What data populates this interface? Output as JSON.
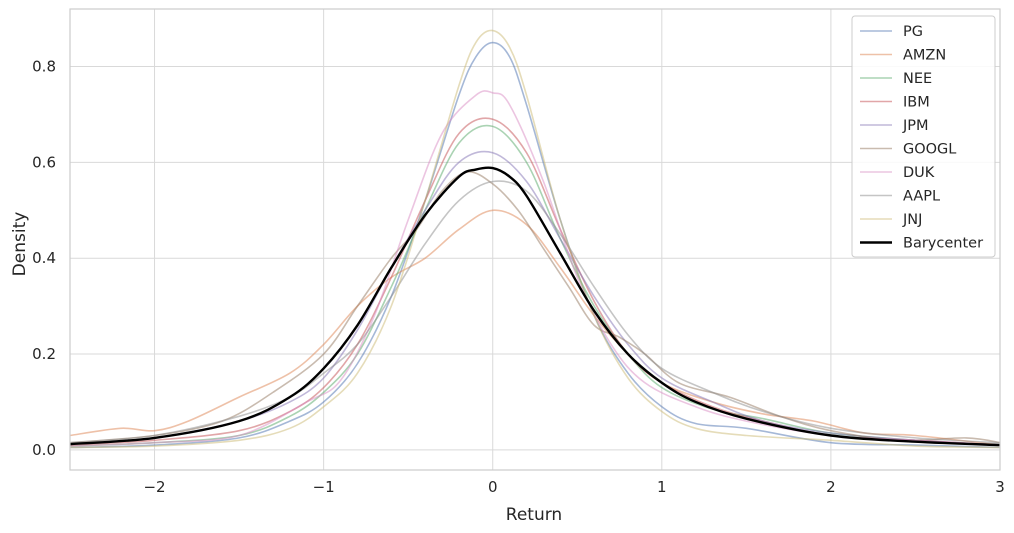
{
  "chart_data": {
    "type": "line",
    "title": "",
    "xlabel": "Return",
    "ylabel": "Density",
    "xlim": [
      -2.5,
      3.0
    ],
    "ylim": [
      -0.042,
      0.92
    ],
    "xticks": [
      -2,
      -1,
      0,
      1,
      2,
      3
    ],
    "xtick_labels": [
      "−2",
      "−1",
      "0",
      "1",
      "2",
      "3"
    ],
    "yticks": [
      0.0,
      0.2,
      0.4,
      0.6,
      0.8
    ],
    "ytick_labels": [
      "0.0",
      "0.2",
      "0.4",
      "0.6",
      "0.8"
    ],
    "grid": true,
    "legend_position": "top-right",
    "series": [
      {
        "name": "PG",
        "color": "#4c72b0",
        "x": [
          -2.5,
          -2.0,
          -1.5,
          -1.2,
          -1.0,
          -0.8,
          -0.6,
          -0.4,
          -0.2,
          -0.1,
          0.0,
          0.1,
          0.2,
          0.4,
          0.6,
          0.8,
          1.0,
          1.2,
          1.5,
          2.0,
          2.5,
          3.0
        ],
        "y": [
          0.005,
          0.01,
          0.025,
          0.06,
          0.1,
          0.18,
          0.32,
          0.52,
          0.74,
          0.82,
          0.85,
          0.82,
          0.72,
          0.48,
          0.28,
          0.16,
          0.09,
          0.055,
          0.045,
          0.015,
          0.01,
          0.005
        ]
      },
      {
        "name": "AMZN",
        "color": "#dd8452",
        "x": [
          -2.5,
          -2.2,
          -2.0,
          -1.8,
          -1.5,
          -1.2,
          -1.0,
          -0.8,
          -0.6,
          -0.4,
          -0.2,
          0.0,
          0.2,
          0.4,
          0.6,
          0.8,
          1.0,
          1.3,
          1.6,
          1.9,
          2.2,
          2.5,
          3.0
        ],
        "y": [
          0.03,
          0.045,
          0.04,
          0.06,
          0.11,
          0.16,
          0.22,
          0.3,
          0.36,
          0.4,
          0.46,
          0.5,
          0.47,
          0.38,
          0.28,
          0.2,
          0.14,
          0.1,
          0.075,
          0.06,
          0.035,
          0.03,
          0.01
        ]
      },
      {
        "name": "NEE",
        "color": "#55a868",
        "x": [
          -2.5,
          -2.0,
          -1.5,
          -1.2,
          -1.0,
          -0.8,
          -0.6,
          -0.4,
          -0.2,
          0.0,
          0.2,
          0.4,
          0.6,
          0.8,
          1.0,
          1.3,
          1.6,
          2.0,
          2.5,
          3.0
        ],
        "y": [
          0.008,
          0.015,
          0.03,
          0.07,
          0.12,
          0.2,
          0.34,
          0.5,
          0.64,
          0.675,
          0.6,
          0.44,
          0.3,
          0.2,
          0.13,
          0.085,
          0.065,
          0.035,
          0.02,
          0.01
        ]
      },
      {
        "name": "IBM",
        "color": "#c44e52",
        "x": [
          -2.5,
          -2.0,
          -1.5,
          -1.2,
          -1.0,
          -0.8,
          -0.6,
          -0.4,
          -0.2,
          0.0,
          0.2,
          0.4,
          0.6,
          0.8,
          1.0,
          1.3,
          1.6,
          2.0,
          2.5,
          3.0
        ],
        "y": [
          0.01,
          0.02,
          0.04,
          0.08,
          0.13,
          0.22,
          0.36,
          0.52,
          0.66,
          0.69,
          0.62,
          0.46,
          0.31,
          0.2,
          0.14,
          0.09,
          0.06,
          0.03,
          0.02,
          0.01
        ]
      },
      {
        "name": "JPM",
        "color": "#8172b3",
        "x": [
          -2.5,
          -2.0,
          -1.5,
          -1.2,
          -1.0,
          -0.8,
          -0.6,
          -0.4,
          -0.2,
          0.0,
          0.2,
          0.4,
          0.6,
          0.8,
          1.0,
          1.3,
          1.6,
          2.0,
          2.5,
          3.0
        ],
        "y": [
          0.012,
          0.025,
          0.06,
          0.1,
          0.15,
          0.25,
          0.38,
          0.5,
          0.6,
          0.62,
          0.56,
          0.44,
          0.32,
          0.22,
          0.15,
          0.1,
          0.06,
          0.035,
          0.02,
          0.01
        ]
      },
      {
        "name": "GOOGL",
        "color": "#937860",
        "x": [
          -2.5,
          -2.0,
          -1.6,
          -1.3,
          -1.0,
          -0.8,
          -0.6,
          -0.45,
          -0.3,
          -0.15,
          0.0,
          0.15,
          0.3,
          0.45,
          0.6,
          0.75,
          0.9,
          1.1,
          1.4,
          1.7,
          2.0,
          2.4,
          2.8,
          3.0
        ],
        "y": [
          0.015,
          0.03,
          0.06,
          0.12,
          0.2,
          0.3,
          0.4,
          0.46,
          0.54,
          0.58,
          0.555,
          0.5,
          0.42,
          0.34,
          0.26,
          0.235,
          0.2,
          0.14,
          0.11,
          0.07,
          0.04,
          0.02,
          0.025,
          0.015
        ]
      },
      {
        "name": "DUK",
        "color": "#da8bc3",
        "x": [
          -2.5,
          -2.0,
          -1.5,
          -1.1,
          -0.9,
          -0.7,
          -0.5,
          -0.3,
          -0.1,
          0.0,
          0.1,
          0.3,
          0.5,
          0.7,
          0.9,
          1.2,
          1.5,
          2.0,
          2.5,
          3.0
        ],
        "y": [
          0.008,
          0.015,
          0.03,
          0.1,
          0.145,
          0.28,
          0.48,
          0.66,
          0.74,
          0.745,
          0.72,
          0.56,
          0.36,
          0.22,
          0.14,
          0.09,
          0.06,
          0.03,
          0.02,
          0.01
        ]
      },
      {
        "name": "AAPL",
        "color": "#8c8c8c",
        "x": [
          -2.5,
          -2.0,
          -1.5,
          -1.2,
          -1.0,
          -0.8,
          -0.6,
          -0.4,
          -0.2,
          0.0,
          0.2,
          0.4,
          0.6,
          0.8,
          1.0,
          1.3,
          1.6,
          2.0,
          2.5,
          3.0
        ],
        "y": [
          0.015,
          0.03,
          0.07,
          0.11,
          0.16,
          0.22,
          0.32,
          0.43,
          0.52,
          0.56,
          0.54,
          0.45,
          0.34,
          0.24,
          0.17,
          0.12,
          0.08,
          0.045,
          0.025,
          0.015
        ]
      },
      {
        "name": "JNJ",
        "color": "#ccb974",
        "x": [
          -2.5,
          -2.0,
          -1.5,
          -1.2,
          -1.0,
          -0.8,
          -0.6,
          -0.4,
          -0.2,
          -0.1,
          0.0,
          0.1,
          0.2,
          0.4,
          0.6,
          0.8,
          1.0,
          1.2,
          1.5,
          2.0,
          2.5,
          3.0
        ],
        "y": [
          0.005,
          0.008,
          0.02,
          0.045,
          0.09,
          0.16,
          0.3,
          0.52,
          0.76,
          0.85,
          0.875,
          0.84,
          0.74,
          0.48,
          0.28,
          0.15,
          0.08,
          0.045,
          0.03,
          0.02,
          0.008,
          0.005
        ]
      },
      {
        "name": "Barycenter",
        "color": "#000000",
        "x": [
          -2.5,
          -2.0,
          -1.5,
          -1.2,
          -1.0,
          -0.8,
          -0.6,
          -0.4,
          -0.2,
          -0.1,
          0.0,
          0.1,
          0.2,
          0.4,
          0.6,
          0.8,
          1.0,
          1.2,
          1.5,
          2.0,
          2.5,
          3.0
        ],
        "y": [
          0.012,
          0.025,
          0.06,
          0.11,
          0.17,
          0.26,
          0.38,
          0.49,
          0.57,
          0.585,
          0.588,
          0.57,
          0.53,
          0.41,
          0.29,
          0.2,
          0.14,
          0.1,
          0.065,
          0.03,
          0.017,
          0.01
        ]
      }
    ]
  }
}
